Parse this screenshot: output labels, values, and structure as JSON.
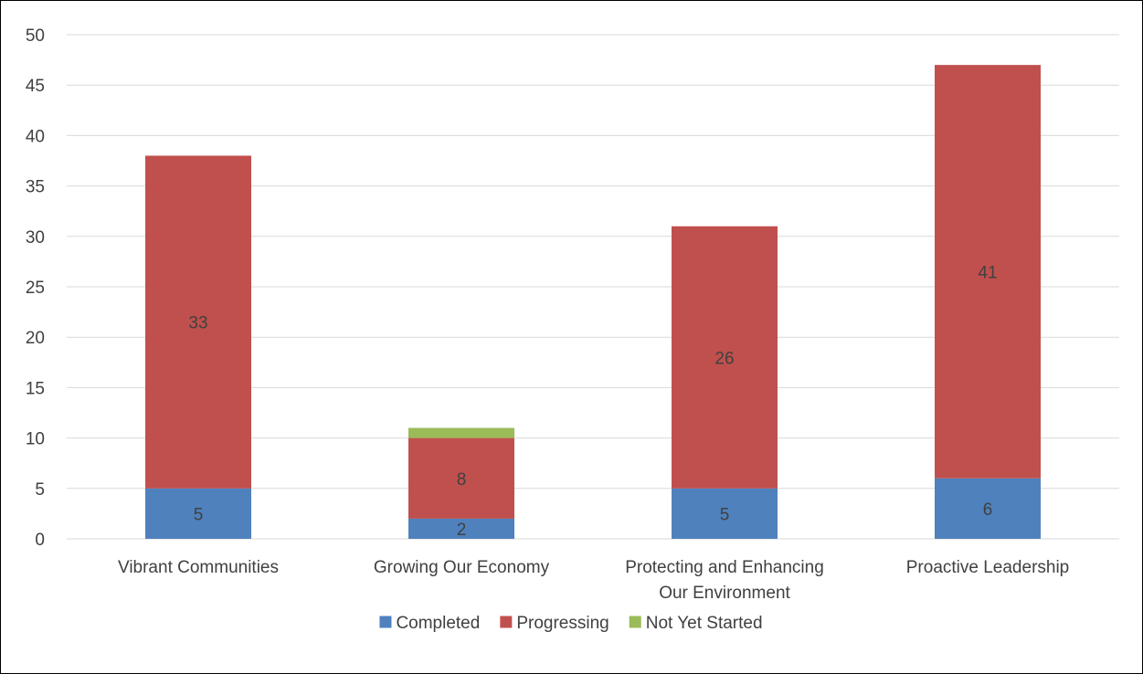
{
  "chart_data": {
    "type": "bar",
    "stacked": true,
    "categories": [
      [
        "Vibrant Communities"
      ],
      [
        "Growing Our Economy"
      ],
      [
        "Protecting and Enhancing",
        "Our Environment"
      ],
      [
        "Proactive Leadership"
      ]
    ],
    "series": [
      {
        "name": "Completed",
        "color": "#4F81BD",
        "values": [
          5,
          2,
          5,
          6
        ],
        "labels": [
          "5",
          "2",
          "5",
          "6"
        ]
      },
      {
        "name": "Progressing",
        "color": "#C0504D",
        "values": [
          33,
          8,
          26,
          41
        ],
        "labels": [
          "33",
          "8",
          "26",
          "41"
        ]
      },
      {
        "name": "Not Yet Started",
        "color": "#9BBB59",
        "values": [
          0,
          1,
          0,
          0
        ],
        "labels": [
          "",
          "",
          "",
          ""
        ]
      }
    ],
    "ylim": [
      0,
      50
    ],
    "yticks": [
      "0",
      "5",
      "10",
      "15",
      "20",
      "25",
      "30",
      "35",
      "40",
      "45",
      "50"
    ],
    "grid": true,
    "legend": "bottom-center",
    "gridline_color": "#D9D9D9"
  }
}
